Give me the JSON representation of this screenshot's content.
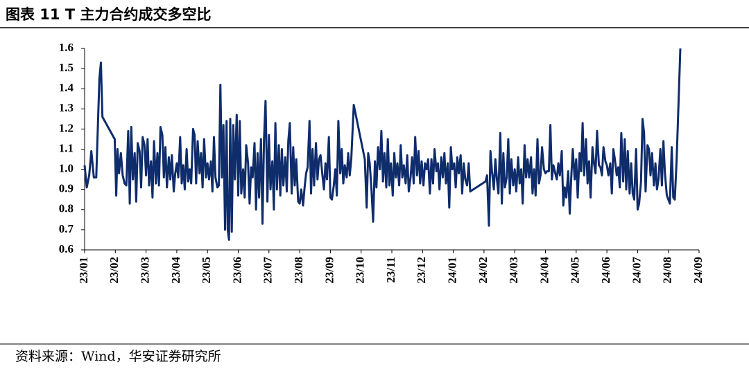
{
  "chart_data": {
    "type": "line",
    "title": "图表 11 T 主力合约成交多空比",
    "source": "资料来源：Wind，华安证券研究所",
    "color": "#0f2c6b",
    "xlim": [
      0,
      20
    ],
    "xticks": [
      {
        "value": 0,
        "label": "23/01"
      },
      {
        "value": 1,
        "label": "23/02"
      },
      {
        "value": 2,
        "label": "23/03"
      },
      {
        "value": 3,
        "label": "23/04"
      },
      {
        "value": 4,
        "label": "23/05"
      },
      {
        "value": 5,
        "label": "23/06"
      },
      {
        "value": 6,
        "label": "23/07"
      },
      {
        "value": 7,
        "label": "23/08"
      },
      {
        "value": 8,
        "label": "23/09"
      },
      {
        "value": 9,
        "label": "23/10"
      },
      {
        "value": 10,
        "label": "23/11"
      },
      {
        "value": 11,
        "label": "23/12"
      },
      {
        "value": 12,
        "label": "24/01"
      },
      {
        "value": 13,
        "label": "24/02"
      },
      {
        "value": 14,
        "label": "24/03"
      },
      {
        "value": 15,
        "label": "24/04"
      },
      {
        "value": 16,
        "label": "24/05"
      },
      {
        "value": 17,
        "label": "24/06"
      },
      {
        "value": 18,
        "label": "24/07"
      },
      {
        "value": 19,
        "label": "24/08"
      },
      {
        "value": 20,
        "label": "24/09"
      }
    ],
    "ylim": [
      0.6,
      1.6
    ],
    "yticks": [
      0.6,
      0.7,
      0.8,
      0.9,
      {
        "value": 1,
        "label": "1.0"
      },
      1.1,
      1.2,
      1.3,
      1.4,
      1.5,
      1.6
    ],
    "x": [
      0,
      0.07,
      0.15,
      0.22,
      0.3,
      0.38,
      0.48,
      0.53,
      0.58,
      0.98,
      1.03,
      1.07,
      1.12,
      1.18,
      1.24,
      1.3,
      1.36,
      1.42,
      1.47,
      1.52,
      1.57,
      1.63,
      1.68,
      1.73,
      1.79,
      1.84,
      1.89,
      1.95,
      2,
      2.05,
      2.1,
      2.16,
      2.21,
      2.26,
      2.32,
      2.37,
      2.42,
      2.47,
      2.53,
      2.58,
      2.63,
      2.68,
      2.74,
      2.79,
      2.84,
      2.9,
      2.95,
      3,
      3.05,
      3.11,
      3.16,
      3.21,
      3.26,
      3.32,
      3.37,
      3.42,
      3.47,
      3.53,
      3.58,
      3.63,
      3.68,
      3.74,
      3.79,
      3.84,
      3.89,
      3.95,
      4,
      4.05,
      4.11,
      4.16,
      4.21,
      4.26,
      4.32,
      4.37,
      4.42,
      4.47,
      4.52,
      4.57,
      4.62,
      4.66,
      4.7,
      4.74,
      4.79,
      4.84,
      4.89,
      4.95,
      5,
      5.05,
      5.1,
      5.16,
      5.21,
      5.26,
      5.32,
      5.37,
      5.42,
      5.47,
      5.53,
      5.58,
      5.63,
      5.68,
      5.74,
      5.79,
      5.84,
      5.89,
      5.95,
      6,
      6.05,
      6.11,
      6.16,
      6.21,
      6.26,
      6.32,
      6.37,
      6.42,
      6.47,
      6.53,
      6.58,
      6.63,
      6.68,
      6.74,
      6.79,
      6.84,
      6.89,
      6.95,
      7,
      7.05,
      7.11,
      7.16,
      7.21,
      7.26,
      7.32,
      7.37,
      7.42,
      7.47,
      7.53,
      7.58,
      7.63,
      7.68,
      7.74,
      7.79,
      7.84,
      7.89,
      7.95,
      8,
      8.05,
      8.11,
      8.16,
      8.21,
      8.26,
      8.32,
      8.37,
      8.42,
      8.47,
      8.53,
      8.58,
      8.63,
      8.68,
      8.76,
      9.12,
      9.18,
      9.23,
      9.28,
      9.34,
      9.39,
      9.45,
      9.5,
      9.55,
      9.61,
      9.66,
      9.71,
      9.76,
      9.82,
      9.87,
      9.92,
      9.97,
      10.03,
      10.08,
      10.13,
      10.18,
      10.24,
      10.29,
      10.34,
      10.39,
      10.45,
      10.5,
      10.55,
      10.61,
      10.66,
      10.71,
      10.76,
      10.82,
      10.87,
      10.92,
      10.97,
      11.03,
      11.08,
      11.13,
      11.18,
      11.24,
      11.29,
      11.34,
      11.39,
      11.45,
      11.5,
      11.55,
      11.61,
      11.66,
      11.71,
      11.76,
      11.82,
      11.87,
      11.92,
      11.97,
      12.03,
      12.08,
      12.13,
      12.18,
      12.24,
      12.29,
      12.34,
      12.39,
      12.45,
      12.5,
      12.55,
      13.05,
      13.1,
      13.16,
      13.21,
      13.26,
      13.32,
      13.37,
      13.42,
      13.47,
      13.53,
      13.58,
      13.63,
      13.68,
      13.74,
      13.79,
      13.84,
      13.89,
      13.95,
      14,
      14.05,
      14.11,
      14.16,
      14.21,
      14.26,
      14.32,
      14.37,
      14.42,
      14.47,
      14.53,
      14.58,
      14.63,
      14.68,
      14.74,
      14.79,
      14.84,
      14.89,
      14.95,
      15,
      15.05,
      15.11,
      15.16,
      15.21,
      15.26,
      15.32,
      15.37,
      15.42,
      15.47,
      15.53,
      15.58,
      15.63,
      15.68,
      15.74,
      15.79,
      15.84,
      15.89,
      15.95,
      16,
      16.05,
      16.11,
      16.16,
      16.21,
      16.26,
      16.32,
      16.37,
      16.42,
      16.47,
      16.53,
      16.58,
      16.63,
      16.68,
      16.74,
      16.79,
      16.84,
      16.89,
      16.95,
      17,
      17.05,
      17.11,
      17.16,
      17.21,
      17.26,
      17.32,
      17.37,
      17.42,
      17.47,
      17.53,
      17.58,
      17.63,
      17.68,
      17.74,
      17.79,
      17.84,
      17.89,
      17.95,
      18,
      18.05,
      18.11,
      18.16,
      18.21,
      18.26,
      18.32,
      18.37,
      18.42,
      18.47,
      18.53,
      18.58,
      18.63,
      18.68,
      18.74,
      18.79,
      18.84,
      18.89,
      18.95,
      19.05,
      19.11,
      19.16,
      19.21,
      19.27,
      19.39
    ],
    "values": [
      1.02,
      0.91,
      0.97,
      1.09,
      0.96,
      0.96,
      1.45,
      1.53,
      1.26,
      1.15,
      0.87,
      1.1,
      0.98,
      1.08,
      0.97,
      0.93,
      0.92,
      1.19,
      0.83,
      1.21,
      0.95,
      1.08,
      0.84,
      1.13,
      1.09,
      0.91,
      1.16,
      1.12,
      0.97,
      1.15,
      0.92,
      1.04,
      0.86,
      1.14,
      0.93,
      1.08,
      0.92,
      1.21,
      1.17,
      0.96,
      1.11,
      0.91,
      1.06,
      0.95,
      1.07,
      0.89,
      0.98,
      1.03,
      0.96,
      1.16,
      0.93,
      1.02,
      0.9,
      1.1,
      0.94,
      1,
      0.93,
      1.2,
      1.17,
      0.93,
      1.14,
      0.98,
      1.08,
      0.91,
      1.15,
      0.96,
      1.03,
      0.95,
      1.04,
      0.89,
      1.16,
      0.96,
      0.91,
      0.92,
      1.42,
      0.96,
      1.22,
      0.7,
      1.24,
      0.7,
      0.65,
      1.25,
      0.69,
      1.22,
      0.95,
      1.27,
      0.87,
      1.24,
      0.88,
      1,
      0.86,
      1.12,
      1.03,
      0.83,
      1.01,
      0.96,
      1.13,
      0.8,
      1.08,
      0.86,
      1.15,
      0.73,
      1.15,
      1.34,
      0.84,
      1.17,
      0.9,
      1.04,
      0.8,
      1.23,
      0.9,
      1.12,
      0.87,
      1.1,
      0.92,
      1.06,
      0.89,
      1.14,
      1.23,
      0.88,
      1.11,
      0.92,
      1.05,
      0.84,
      0.83,
      0.9,
      0.82,
      0.91,
      0.98,
      1.01,
      1.24,
      0.88,
      1.1,
      0.92,
      1.13,
      0.95,
      1.05,
      1.07,
      0.97,
      0.9,
      1.03,
      0.95,
      1.16,
      0.86,
      0.85,
      0.92,
      1,
      0.87,
      1.24,
      0.98,
      1.1,
      0.93,
      1.02,
      0.96,
      1.08,
      0.97,
      1.05,
      1.32,
      1.05,
      0.81,
      1.08,
      1.03,
      0.89,
      0.74,
      1.04,
      0.91,
      1.11,
      1,
      1.19,
      0.94,
      1.08,
      0.91,
      1.15,
      0.92,
      1.03,
      0.87,
      1.08,
      0.96,
      1.03,
      0.92,
      1.12,
      0.96,
      1.02,
      0.93,
      1.07,
      0.89,
      0.96,
      1.06,
      0.93,
      1.16,
      0.97,
      1.09,
      0.93,
      1.04,
      0.92,
      1.03,
      1,
      1.05,
      0.88,
      1.05,
      0.93,
      1.1,
      0.99,
      1.03,
      0.9,
      1.06,
      0.96,
      1.08,
      0.93,
      1.03,
      0.81,
      1.11,
      1,
      1.03,
      0.91,
      1.06,
      0.98,
      1.07,
      0.88,
      1.03,
      0.95,
      0.92,
      1.03,
      0.89,
      0.94,
      0.97,
      0.72,
      1.09,
      0.99,
      0.9,
      1.05,
      0.95,
      0.88,
      1.18,
      0.83,
      1.08,
      0.91,
      0.96,
      1.15,
      0.88,
      1.05,
      0.92,
      1,
      0.89,
      1.06,
      0.93,
      1,
      0.83,
      1.12,
      0.96,
      1.05,
      0.96,
      1.06,
      0.88,
      1,
      0.87,
      1.15,
      0.93,
      0.97,
      1.11,
      1,
      0.98,
      0.99,
      0.99,
      1.22,
      0.95,
      1.02,
      0.98,
      0.95,
      1.03,
      0.97,
      1.09,
      0.82,
      0.91,
      0.86,
      0.99,
      0.78,
      0.96,
      1.1,
      0.95,
      1.05,
      0.86,
      1.08,
      0.99,
      1.23,
      0.97,
      1.15,
      0.93,
      1.04,
      0.86,
      1.11,
      1.03,
      0.98,
      1.19,
      1.02,
      1.01,
      0.97,
      1.11,
      1.04,
      1.02,
      0.97,
      1.03,
      0.88,
      1.1,
      1.05,
      0.97,
      1.01,
      0.91,
      1.18,
      0.94,
      1.15,
      0.9,
      1.09,
      0.88,
      1.03,
      0.88,
      0.85,
      1.1,
      0.8,
      0.83,
      0.94,
      1.25,
      1.18,
      0.89,
      1.12,
      1.1,
      0.97,
      1.08,
      0.92,
      1.03,
      0.9,
      0.95,
      1.1,
      0.92,
      1.14,
      0.98,
      0.87,
      0.83,
      1.11,
      0.86,
      0.85,
      1.05,
      1.6
    ]
  }
}
